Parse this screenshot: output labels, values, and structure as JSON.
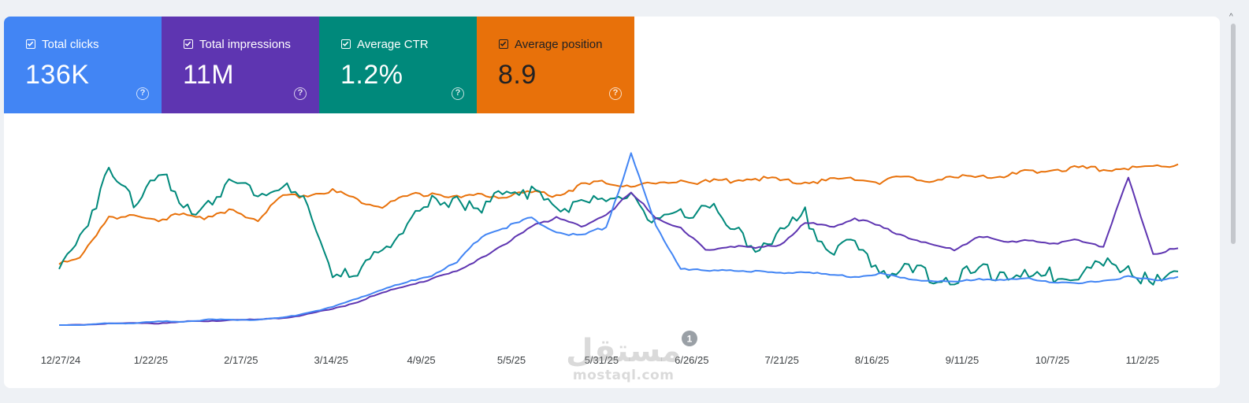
{
  "metrics": [
    {
      "id": "clicks",
      "label": "Total clicks",
      "value": "136K",
      "color": "#4285f4",
      "checked": true
    },
    {
      "id": "impressions",
      "label": "Total impressions",
      "value": "11M",
      "color": "#5e35b1",
      "checked": true
    },
    {
      "id": "ctr",
      "label": "Average CTR",
      "value": "1.2%",
      "color": "#00897b",
      "checked": true
    },
    {
      "id": "position",
      "label": "Average position",
      "value": "8.9",
      "color": "#e8710a",
      "checked": true
    }
  ],
  "help_glyph": "?",
  "annotation_badge": "1",
  "watermark": {
    "arabic": "مستقل",
    "latin": "mostaql.com"
  },
  "chart_data": {
    "type": "line",
    "x_tick_labels": [
      "12/27/24",
      "1/22/25",
      "2/17/25",
      "3/14/25",
      "4/9/25",
      "5/5/25",
      "5/31/25",
      "6/26/25",
      "7/21/25",
      "8/16/25",
      "9/11/25",
      "10/7/25",
      "11/2/25"
    ],
    "x_range": [
      "12/27/24",
      "11/12/25"
    ],
    "grid": false,
    "y_axis_labels_visible": false,
    "series": [
      {
        "id": "position",
        "color": "#e8710a",
        "values": [
          0.35,
          0.4,
          0.6,
          0.62,
          0.57,
          0.63,
          0.6,
          0.64,
          0.59,
          0.72,
          0.73,
          0.75,
          0.7,
          0.67,
          0.72,
          0.74,
          0.71,
          0.73,
          0.72,
          0.74,
          0.73,
          0.78,
          0.8,
          0.78,
          0.79,
          0.81,
          0.8,
          0.81,
          0.82,
          0.81,
          0.8,
          0.81,
          0.82,
          0.8,
          0.83,
          0.81,
          0.82,
          0.84,
          0.83,
          0.86,
          0.87,
          0.88,
          0.87,
          0.88,
          0.89,
          0.9
        ]
      },
      {
        "id": "ctr",
        "color": "#00897b",
        "values": [
          0.3,
          0.55,
          0.85,
          0.7,
          0.88,
          0.62,
          0.7,
          0.8,
          0.75,
          0.78,
          0.65,
          0.3,
          0.25,
          0.45,
          0.55,
          0.68,
          0.72,
          0.62,
          0.78,
          0.75,
          0.64,
          0.72,
          0.65,
          0.75,
          0.56,
          0.6,
          0.7,
          0.52,
          0.45,
          0.5,
          0.62,
          0.42,
          0.44,
          0.32,
          0.3,
          0.28,
          0.27,
          0.29,
          0.3,
          0.26,
          0.28,
          0.3,
          0.33,
          0.34,
          0.22,
          0.3
        ]
      },
      {
        "id": "impressions",
        "color": "#5e35b1",
        "values": [
          0.0,
          0.0,
          0.01,
          0.01,
          0.01,
          0.02,
          0.02,
          0.03,
          0.03,
          0.04,
          0.06,
          0.09,
          0.13,
          0.18,
          0.22,
          0.26,
          0.3,
          0.38,
          0.45,
          0.56,
          0.6,
          0.55,
          0.62,
          0.74,
          0.6,
          0.54,
          0.42,
          0.44,
          0.43,
          0.45,
          0.57,
          0.55,
          0.6,
          0.55,
          0.5,
          0.45,
          0.42,
          0.5,
          0.46,
          0.48,
          0.45,
          0.48,
          0.44,
          0.82,
          0.4,
          0.43
        ]
      },
      {
        "id": "clicks",
        "color": "#4285f4",
        "values": [
          0.0,
          0.0,
          0.01,
          0.01,
          0.02,
          0.02,
          0.03,
          0.03,
          0.03,
          0.04,
          0.07,
          0.1,
          0.15,
          0.2,
          0.24,
          0.28,
          0.35,
          0.5,
          0.55,
          0.6,
          0.52,
          0.5,
          0.55,
          0.96,
          0.55,
          0.32,
          0.3,
          0.31,
          0.3,
          0.29,
          0.3,
          0.28,
          0.27,
          0.29,
          0.26,
          0.25,
          0.24,
          0.26,
          0.25,
          0.26,
          0.24,
          0.23,
          0.25,
          0.27,
          0.25,
          0.27
        ]
      }
    ]
  }
}
